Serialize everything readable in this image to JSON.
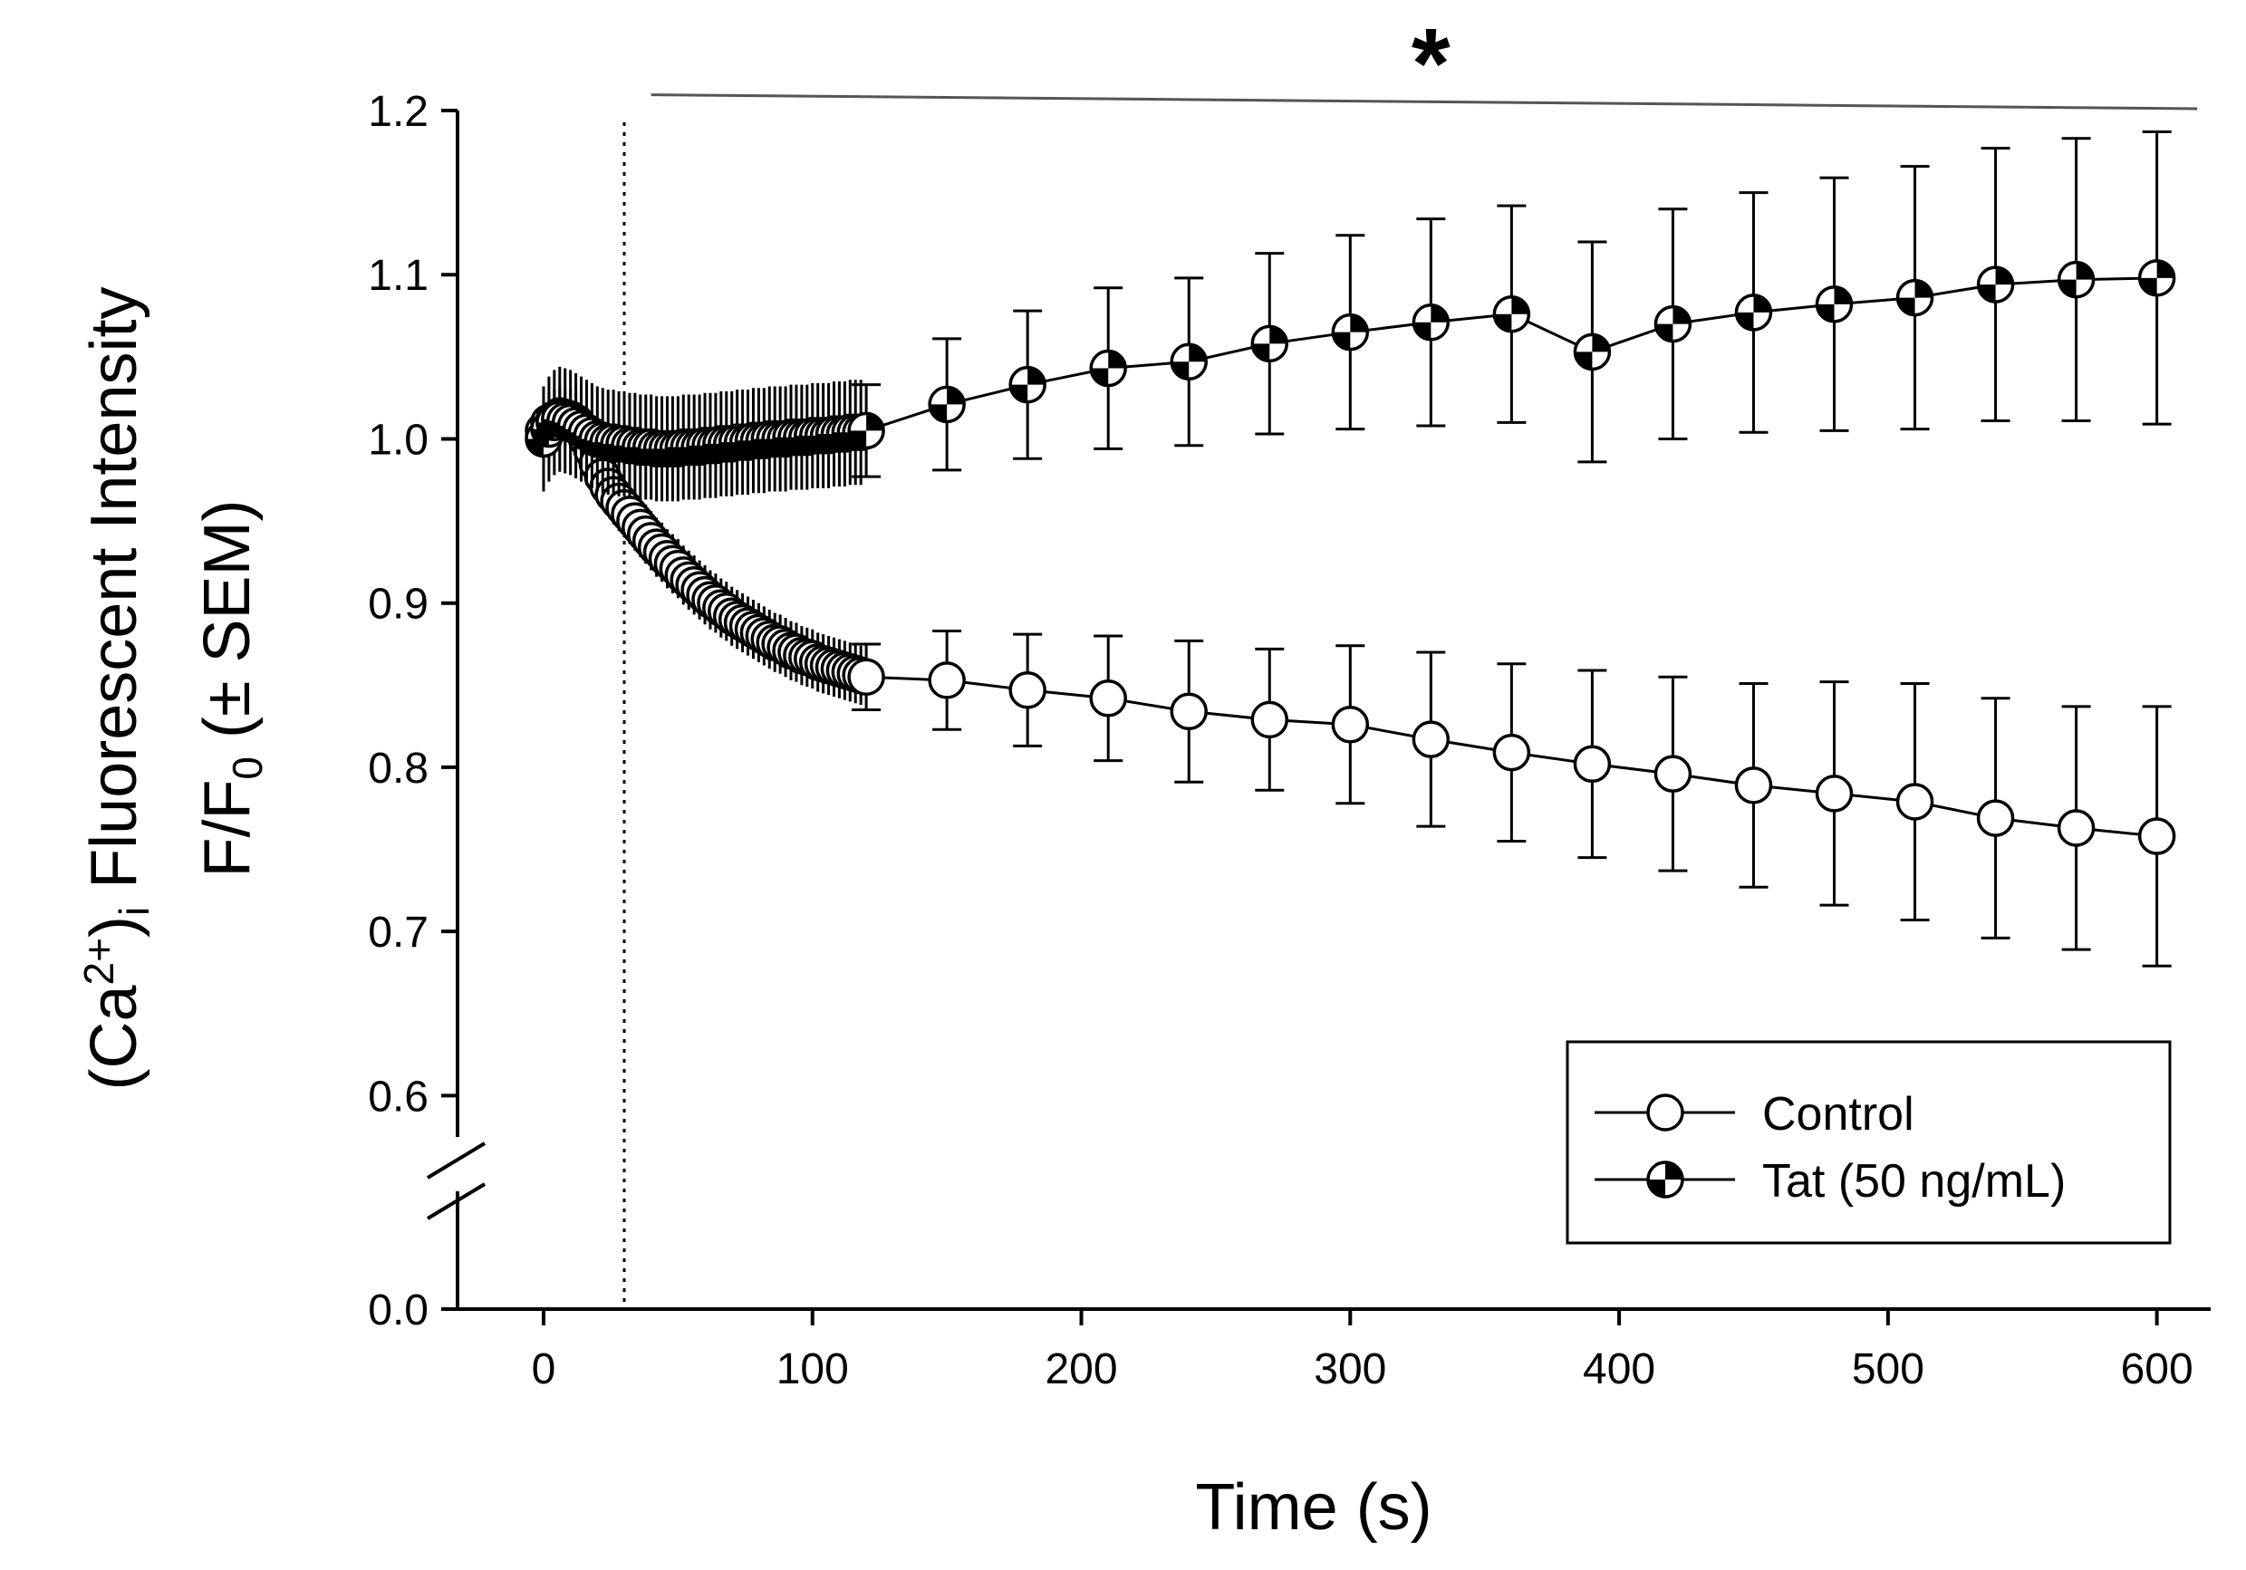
{
  "chart_data": {
    "type": "line",
    "xlabel": "Time (s)",
    "ylabel": {
      "line1_parts": [
        "(Ca",
        "2+",
        ")",
        "i",
        " Fluorescent Intensity"
      ],
      "line2_parts": [
        "F/F",
        "0",
        " (± SEM)"
      ]
    },
    "xlim": [
      -32,
      620
    ],
    "xticks": [
      0,
      100,
      200,
      300,
      400,
      500,
      600
    ],
    "xtick_labels": [
      "0",
      "100",
      "200",
      "300",
      "400",
      "500",
      "600"
    ],
    "ylim": [
      0,
      1.2
    ],
    "y_axis_break": [
      0.0,
      0.55
    ],
    "yticks": [
      0.0,
      0.6,
      0.7,
      0.8,
      0.9,
      1.0,
      1.1,
      1.2
    ],
    "ytick_labels": [
      "0.0",
      "0.6",
      "0.7",
      "0.8",
      "0.9",
      "1.0",
      "1.1",
      "1.2"
    ],
    "grid": false,
    "legend_position": "bottom-right",
    "vline_x": 30,
    "significance": {
      "label": "*",
      "x_start": 40,
      "x_end": 615,
      "y_start": 1.203,
      "y_end": 1.2
    },
    "series": [
      {
        "name": "Control",
        "marker": "open-circle",
        "dense_x": [
          0,
          2,
          4,
          6,
          8,
          10,
          12,
          14,
          16,
          18,
          20,
          22,
          24,
          26,
          28,
          30,
          32,
          34,
          36,
          38,
          40,
          42,
          44,
          46,
          48,
          50,
          52,
          54,
          56,
          58,
          60,
          62,
          64,
          66,
          68,
          70,
          72,
          74,
          76,
          78,
          80,
          82,
          84,
          86,
          88,
          90,
          92,
          94,
          96,
          98,
          100,
          102,
          104,
          106,
          108,
          110,
          112,
          114,
          116,
          118
        ],
        "dense_y": [
          1.005,
          1.01,
          1.012,
          1.014,
          1.013,
          1.012,
          1.01,
          1.006,
          1.0,
          0.993,
          0.985,
          0.977,
          0.971,
          0.966,
          0.962,
          0.958,
          0.954,
          0.95,
          0.946,
          0.942,
          0.938,
          0.934,
          0.931,
          0.927,
          0.924,
          0.921,
          0.917,
          0.914,
          0.911,
          0.908,
          0.905,
          0.902,
          0.9,
          0.897,
          0.895,
          0.892,
          0.89,
          0.888,
          0.886,
          0.884,
          0.882,
          0.88,
          0.878,
          0.876,
          0.875,
          0.873,
          0.871,
          0.87,
          0.868,
          0.867,
          0.866,
          0.864,
          0.863,
          0.862,
          0.861,
          0.86,
          0.859,
          0.858,
          0.857,
          0.856
        ],
        "dense_err": 0.018,
        "x": [
          120,
          150,
          180,
          210,
          240,
          270,
          300,
          330,
          360,
          390,
          420,
          450,
          480,
          510,
          540,
          570,
          600
        ],
        "y": [
          0.855,
          0.853,
          0.847,
          0.842,
          0.834,
          0.829,
          0.826,
          0.817,
          0.809,
          0.802,
          0.796,
          0.789,
          0.784,
          0.779,
          0.769,
          0.763,
          0.758
        ],
        "err": [
          0.02,
          0.03,
          0.034,
          0.038,
          0.043,
          0.043,
          0.048,
          0.053,
          0.054,
          0.057,
          0.059,
          0.062,
          0.068,
          0.072,
          0.073,
          0.074,
          0.079
        ]
      },
      {
        "name": "Tat (50 ng/mL)",
        "marker": "quartered-circle",
        "dense_x": [
          0,
          2,
          4,
          6,
          8,
          10,
          12,
          14,
          16,
          18,
          20,
          22,
          24,
          26,
          28,
          30,
          32,
          34,
          36,
          38,
          40,
          42,
          44,
          46,
          48,
          50,
          52,
          54,
          56,
          58,
          60,
          62,
          64,
          66,
          68,
          70,
          72,
          74,
          76,
          78,
          80,
          82,
          84,
          86,
          88,
          90,
          92,
          94,
          96,
          98,
          100,
          102,
          104,
          106,
          108,
          110,
          112,
          114,
          116,
          118
        ],
        "dense_y": [
          1.0,
          1.006,
          1.01,
          1.012,
          1.011,
          1.01,
          1.008,
          1.006,
          1.004,
          1.002,
          1.0,
          0.999,
          0.998,
          0.998,
          0.997,
          0.997,
          0.996,
          0.996,
          0.995,
          0.995,
          0.995,
          0.994,
          0.994,
          0.994,
          0.994,
          0.994,
          0.995,
          0.995,
          0.995,
          0.995,
          0.996,
          0.996,
          0.996,
          0.997,
          0.997,
          0.997,
          0.998,
          0.998,
          0.998,
          0.999,
          0.999,
          0.999,
          1.0,
          1.0,
          1.0,
          1.0,
          1.001,
          1.001,
          1.001,
          1.001,
          1.002,
          1.002,
          1.002,
          1.002,
          1.003,
          1.003,
          1.003,
          1.004,
          1.004,
          1.004
        ],
        "dense_err": 0.032,
        "x": [
          120,
          150,
          180,
          210,
          240,
          270,
          300,
          330,
          360,
          390,
          420,
          450,
          480,
          510,
          540,
          570,
          600
        ],
        "y": [
          1.005,
          1.021,
          1.033,
          1.043,
          1.047,
          1.058,
          1.065,
          1.071,
          1.076,
          1.053,
          1.07,
          1.077,
          1.082,
          1.086,
          1.094,
          1.097,
          1.098
        ],
        "err": [
          0.028,
          0.04,
          0.045,
          0.049,
          0.051,
          0.055,
          0.059,
          0.063,
          0.066,
          0.067,
          0.07,
          0.073,
          0.077,
          0.08,
          0.083,
          0.086,
          0.089
        ]
      }
    ]
  }
}
